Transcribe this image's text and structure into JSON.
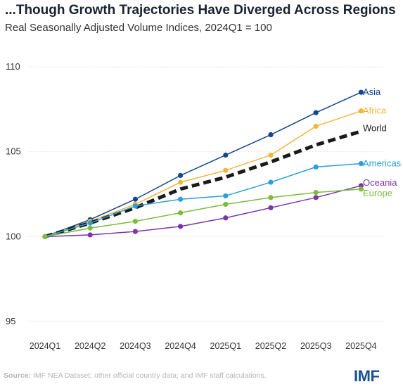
{
  "chart_data": {
    "type": "line",
    "title": "...Though Growth Trajectories Have Diverged Across Regions",
    "subtitle": "Real Seasonally Adjusted Volume Indices, 2024Q1 = 100",
    "categories": [
      "2024Q1",
      "2024Q2",
      "2024Q3",
      "2024Q4",
      "2025Q1",
      "2025Q2",
      "2025Q3",
      "2025Q4"
    ],
    "ylim": [
      95,
      110
    ],
    "yticks": [
      "95",
      "100",
      "105",
      "110"
    ],
    "grid": true,
    "series": [
      {
        "name": "Asia",
        "color": "#14468f",
        "dashed": false,
        "markers": true,
        "values": [
          100,
          101.0,
          102.2,
          103.6,
          104.8,
          106.0,
          107.3,
          108.5
        ]
      },
      {
        "name": "Africa",
        "color": "#f2b63c",
        "dashed": false,
        "markers": true,
        "values": [
          100,
          100.9,
          101.9,
          103.2,
          103.9,
          104.8,
          106.5,
          107.4
        ]
      },
      {
        "name": "World",
        "color": "#1a1a1a",
        "dashed": true,
        "markers": false,
        "values": [
          100,
          100.8,
          101.7,
          102.8,
          103.5,
          104.4,
          105.4,
          106.2
        ]
      },
      {
        "name": "Americas",
        "color": "#2a9fd8",
        "dashed": false,
        "markers": true,
        "values": [
          100,
          100.8,
          101.8,
          102.2,
          102.4,
          103.2,
          104.1,
          104.3
        ]
      },
      {
        "name": "Oceania",
        "color": "#7e35a6",
        "dashed": false,
        "markers": true,
        "values": [
          100,
          100.1,
          100.3,
          100.6,
          101.1,
          101.7,
          102.3,
          103.0
        ]
      },
      {
        "name": "Europe",
        "color": "#7cbc3c",
        "dashed": false,
        "markers": true,
        "values": [
          100,
          100.5,
          100.9,
          101.4,
          101.9,
          102.3,
          102.6,
          102.8
        ]
      }
    ]
  },
  "footer": {
    "source_label": "Source:",
    "source_text": " IMF NEA Dataset; other official country data; and IMF staff calculations."
  },
  "logo": "IMF"
}
